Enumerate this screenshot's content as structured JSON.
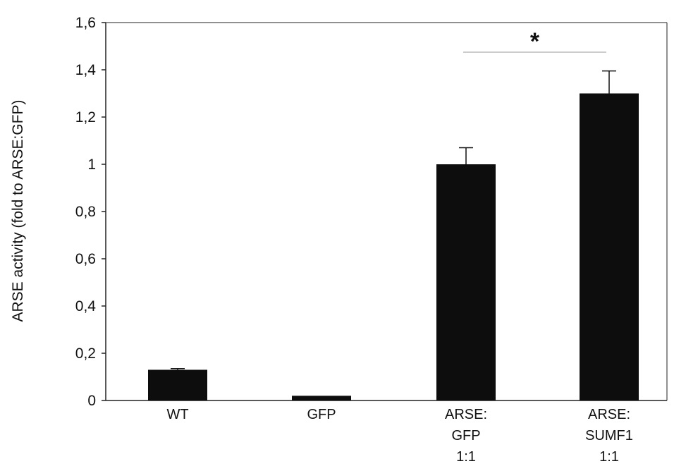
{
  "chart_data": {
    "type": "bar",
    "title": "",
    "ylabel": "ARSE activity (fold to ARSE:GFP)",
    "xlabel": "",
    "ylim": [
      0,
      1.6
    ],
    "yticks": [
      "0",
      "0,2",
      "0,4",
      "0,6",
      "0,8",
      "1",
      "1,2",
      "1,4",
      "1,6"
    ],
    "categories": [
      [
        "WT"
      ],
      [
        "GFP"
      ],
      [
        "ARSE:",
        "GFP",
        "1:1"
      ],
      [
        "ARSE:",
        "SUMF1",
        "1:1"
      ]
    ],
    "values": [
      0.13,
      0.02,
      1.0,
      1.3
    ],
    "errors": [
      0.005,
      0.0,
      0.07,
      0.095
    ],
    "bar_color": "#0d0d0d",
    "grid": false,
    "annotations": [
      {
        "type": "significance",
        "between": [
          2,
          3
        ],
        "label": "*"
      }
    ]
  }
}
